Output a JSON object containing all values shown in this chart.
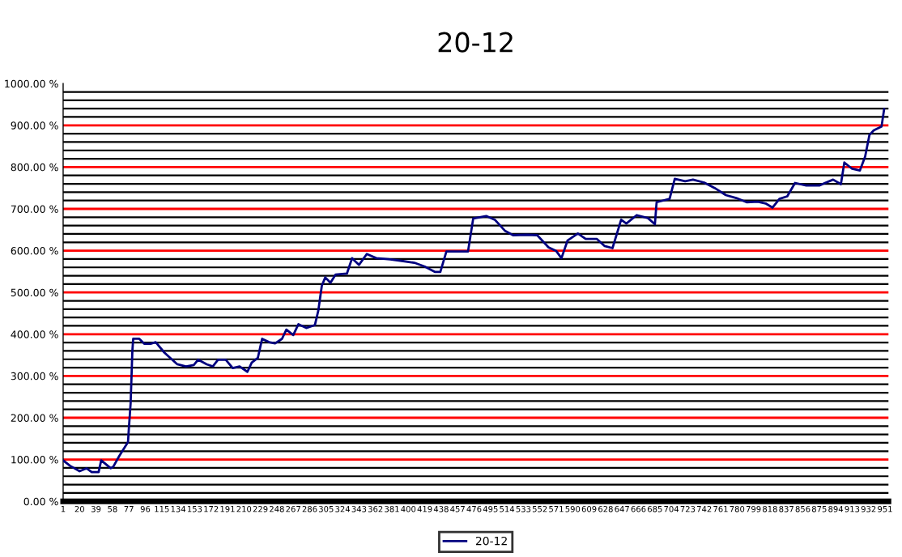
{
  "chart_data": {
    "type": "line",
    "title": "20-12",
    "x": [
      1,
      9,
      20,
      28,
      34,
      42,
      45,
      56,
      59,
      66,
      76,
      77,
      79,
      81,
      82,
      89,
      95,
      102,
      108,
      118,
      127,
      133,
      143,
      152,
      157,
      167,
      174,
      180,
      189,
      197,
      205,
      214,
      219,
      226,
      231,
      239,
      246,
      254,
      259,
      267,
      273,
      282,
      292,
      296,
      300,
      304,
      310,
      316,
      329,
      335,
      343,
      352,
      363,
      379,
      394,
      407,
      419,
      431,
      437,
      444,
      469,
      475,
      490,
      500,
      512,
      521,
      537,
      549,
      562,
      571,
      577,
      584,
      596,
      605,
      618,
      627,
      636,
      646,
      652,
      664,
      677,
      685,
      687,
      702,
      708,
      720,
      729,
      742,
      754,
      767,
      779,
      791,
      804,
      813,
      821,
      829,
      838,
      847,
      860,
      875,
      891,
      900,
      904,
      913,
      922,
      928,
      933,
      938,
      947,
      950
    ],
    "series": [
      {
        "name": "20-12",
        "color": "#000080",
        "values": [
          98,
          85,
          72,
          79,
          70,
          70,
          98,
          79,
          83,
          109,
          142,
          175,
          234,
          359,
          389,
          389,
          377,
          377,
          381,
          356,
          339,
          328,
          323,
          326,
          339,
          328,
          323,
          339,
          339,
          319,
          323,
          310,
          332,
          343,
          389,
          381,
          378,
          389,
          411,
          398,
          424,
          415,
          422,
          457,
          516,
          536,
          523,
          543,
          545,
          582,
          566,
          592,
          582,
          579,
          575,
          571,
          562,
          549,
          549,
          598,
          598,
          677,
          683,
          674,
          647,
          637,
          638,
          637,
          608,
          599,
          582,
          624,
          641,
          628,
          628,
          611,
          606,
          674,
          665,
          685,
          678,
          663,
          716,
          724,
          772,
          766,
          770,
          763,
          750,
          733,
          726,
          716,
          717,
          713,
          703,
          724,
          730,
          762,
          756,
          756,
          770,
          759,
          811,
          796,
          792,
          825,
          877,
          888,
          897,
          939
        ]
      }
    ],
    "xlim": [
      1,
      955
    ],
    "xticks": [
      1,
      20,
      39,
      58,
      77,
      96,
      115,
      134,
      153,
      172,
      191,
      210,
      229,
      248,
      267,
      286,
      305,
      324,
      343,
      362,
      381,
      400,
      419,
      438,
      457,
      476,
      495,
      514,
      533,
      552,
      571,
      590,
      609,
      628,
      647,
      666,
      685,
      704,
      723,
      742,
      761,
      780,
      799,
      818,
      837,
      856,
      875,
      894,
      913,
      932,
      951
    ],
    "ylim": [
      0,
      1000
    ],
    "yticks": [
      {
        "value": 0,
        "label": "0.00 %"
      },
      {
        "value": 20,
        "label": null
      },
      {
        "value": 40,
        "label": null
      },
      {
        "value": 60,
        "label": null
      },
      {
        "value": 80,
        "label": null
      },
      {
        "value": 100,
        "label": "100.00 %"
      },
      {
        "value": 120,
        "label": null
      },
      {
        "value": 140,
        "label": null
      },
      {
        "value": 160,
        "label": null
      },
      {
        "value": 180,
        "label": null
      },
      {
        "value": 200,
        "label": "200.00 %"
      },
      {
        "value": 220,
        "label": null
      },
      {
        "value": 240,
        "label": null
      },
      {
        "value": 260,
        "label": null
      },
      {
        "value": 280,
        "label": null
      },
      {
        "value": 300,
        "label": "300.00 %"
      },
      {
        "value": 320,
        "label": null
      },
      {
        "value": 340,
        "label": null
      },
      {
        "value": 360,
        "label": null
      },
      {
        "value": 380,
        "label": null
      },
      {
        "value": 400,
        "label": "400.00 %"
      },
      {
        "value": 420,
        "label": null
      },
      {
        "value": 440,
        "label": null
      },
      {
        "value": 460,
        "label": null
      },
      {
        "value": 480,
        "label": null
      },
      {
        "value": 500,
        "label": "500.00 %"
      },
      {
        "value": 520,
        "label": null
      },
      {
        "value": 540,
        "label": null
      },
      {
        "value": 560,
        "label": null
      },
      {
        "value": 580,
        "label": null
      },
      {
        "value": 600,
        "label": "600.00 %"
      },
      {
        "value": 620,
        "label": null
      },
      {
        "value": 640,
        "label": null
      },
      {
        "value": 660,
        "label": null
      },
      {
        "value": 680,
        "label": null
      },
      {
        "value": 700,
        "label": "700.00 %"
      },
      {
        "value": 720,
        "label": null
      },
      {
        "value": 740,
        "label": null
      },
      {
        "value": 760,
        "label": null
      },
      {
        "value": 780,
        "label": null
      },
      {
        "value": 800,
        "label": "800.00 %"
      },
      {
        "value": 820,
        "label": null
      },
      {
        "value": 840,
        "label": null
      },
      {
        "value": 860,
        "label": null
      },
      {
        "value": 880,
        "label": null
      },
      {
        "value": 900,
        "label": "900.00 %"
      },
      {
        "value": 920,
        "label": null
      },
      {
        "value": 940,
        "label": null
      },
      {
        "value": 960,
        "label": null
      },
      {
        "value": 980,
        "label": null
      },
      {
        "value": 1000,
        "label": "1000.00 %"
      }
    ],
    "grid": "y",
    "legend": "bottom",
    "marker": "none",
    "line_style": "solid"
  }
}
